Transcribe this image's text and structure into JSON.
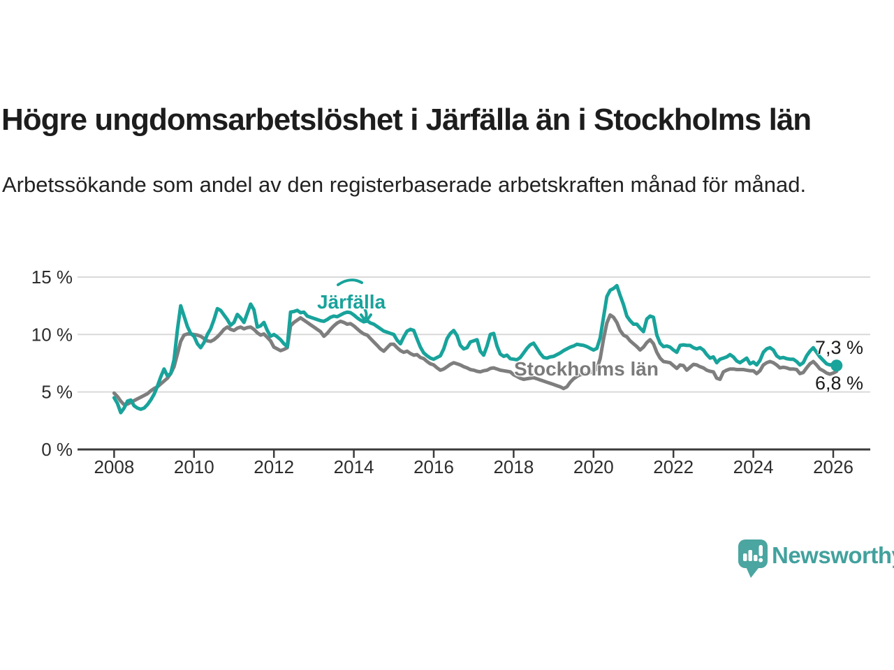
{
  "header": {
    "title": "Högre ungdomsarbetslöshet i Järfälla än i Stockholms län",
    "subtitle": "Arbetssökande som andel av den registerbaserade arbetskraften månad för månad."
  },
  "chart_data": {
    "type": "line",
    "title": "Högre ungdomsarbetslöshet i Järfälla än i Stockholms län",
    "x_start_year": 2008,
    "points_per_year": 12,
    "ylim": [
      0,
      15.5
    ],
    "grid": "horizontal",
    "legend_position": "inline-annotations",
    "y_ticks": [
      {
        "value": 0,
        "label": "0 %"
      },
      {
        "value": 5,
        "label": "5 %"
      },
      {
        "value": 10,
        "label": "10 %"
      },
      {
        "value": 15,
        "label": "15 %"
      }
    ],
    "x_ticks": [
      {
        "year": 2008,
        "label": "2008"
      },
      {
        "year": 2010,
        "label": "2010"
      },
      {
        "year": 2012,
        "label": "2012"
      },
      {
        "year": 2014,
        "label": "2014"
      },
      {
        "year": 2016,
        "label": "2016"
      },
      {
        "year": 2018,
        "label": "2018"
      },
      {
        "year": 2020,
        "label": "2020"
      },
      {
        "year": 2022,
        "label": "2022"
      },
      {
        "year": 2024,
        "label": "2024"
      },
      {
        "year": 2026,
        "label": "2026"
      }
    ],
    "series": [
      {
        "name": "Järfälla",
        "color": "#18a39b",
        "end_label": "7,3 %",
        "end_value": 7.3,
        "values": [
          4.5,
          4.0,
          3.2,
          3.6,
          4.2,
          4.3,
          3.8,
          3.6,
          3.5,
          3.6,
          3.9,
          4.3,
          4.8,
          5.5,
          6.3,
          7.0,
          6.4,
          6.6,
          7.8,
          10.4,
          12.5,
          11.6,
          10.7,
          10.1,
          9.85,
          9.2,
          8.85,
          9.3,
          10.0,
          10.5,
          11.3,
          12.25,
          12.1,
          11.7,
          11.3,
          10.8,
          11.05,
          11.75,
          11.45,
          11.05,
          11.85,
          12.65,
          12.15,
          10.65,
          10.75,
          11.05,
          10.35,
          9.85,
          10.0,
          9.8,
          9.55,
          9.2,
          8.95,
          11.95,
          12.0,
          12.1,
          11.9,
          11.95,
          11.6,
          11.5,
          11.4,
          11.3,
          11.2,
          11.15,
          11.3,
          11.5,
          11.6,
          11.55,
          11.7,
          11.85,
          11.95,
          11.9,
          11.7,
          11.45,
          11.25,
          11.1,
          11.2,
          11.0,
          10.9,
          10.7,
          10.5,
          10.3,
          10.2,
          10.1,
          10.0,
          9.5,
          9.2,
          9.8,
          10.3,
          10.45,
          10.35,
          9.6,
          8.9,
          8.4,
          8.15,
          7.95,
          7.85,
          8.0,
          8.15,
          8.75,
          9.65,
          10.1,
          10.35,
          9.9,
          9.05,
          8.75,
          8.85,
          9.35,
          9.45,
          9.55,
          8.55,
          8.2,
          9.0,
          10.0,
          10.1,
          9.0,
          8.3,
          8.1,
          8.2,
          7.9,
          7.85,
          7.8,
          8.0,
          8.4,
          8.8,
          9.1,
          9.25,
          8.8,
          8.35,
          8.0,
          7.95,
          8.05,
          8.1,
          8.25,
          8.4,
          8.6,
          8.75,
          8.9,
          9.0,
          9.15,
          9.1,
          9.05,
          8.95,
          8.8,
          8.65,
          8.8,
          9.7,
          11.5,
          13.3,
          13.85,
          14.0,
          14.25,
          13.4,
          12.6,
          11.6,
          11.2,
          10.9,
          10.9,
          10.55,
          10.25,
          11.35,
          11.6,
          11.5,
          9.95,
          9.25,
          8.95,
          9.0,
          8.9,
          8.65,
          8.45,
          9.05,
          9.1,
          9.05,
          9.05,
          8.85,
          8.75,
          8.85,
          8.65,
          8.25,
          7.95,
          8.05,
          7.55,
          7.85,
          7.95,
          8.05,
          8.25,
          8.05,
          7.7,
          7.55,
          7.75,
          7.95,
          7.45,
          7.6,
          7.35,
          7.75,
          8.45,
          8.75,
          8.85,
          8.65,
          8.15,
          7.95,
          8.0,
          7.9,
          7.85,
          7.85,
          7.65,
          7.35,
          7.55,
          8.15,
          8.55,
          8.85,
          8.45,
          8.05,
          7.75,
          7.45,
          7.35,
          7.4,
          7.3
        ]
      },
      {
        "name": "Stockholms län",
        "color": "#7e7e7e",
        "end_label": "6,8 %",
        "end_value": 6.8,
        "values": [
          4.9,
          4.6,
          4.2,
          3.9,
          3.95,
          4.1,
          4.25,
          4.4,
          4.55,
          4.7,
          4.85,
          5.1,
          5.3,
          5.45,
          5.7,
          5.95,
          6.2,
          6.6,
          7.2,
          8.3,
          9.4,
          9.95,
          10.05,
          10.05,
          10.0,
          9.95,
          9.85,
          9.65,
          9.45,
          9.4,
          9.55,
          9.8,
          10.1,
          10.45,
          10.65,
          10.45,
          10.35,
          10.55,
          10.65,
          10.5,
          10.6,
          10.65,
          10.45,
          10.15,
          9.95,
          10.05,
          9.75,
          9.45,
          8.9,
          8.75,
          8.6,
          8.7,
          8.85,
          10.75,
          11.05,
          11.25,
          11.45,
          11.25,
          11.05,
          10.85,
          10.65,
          10.45,
          10.25,
          9.85,
          10.1,
          10.45,
          10.75,
          11.0,
          11.15,
          11.05,
          10.9,
          10.95,
          10.75,
          10.5,
          10.25,
          10.05,
          9.95,
          9.65,
          9.35,
          9.05,
          8.75,
          8.55,
          8.85,
          9.15,
          9.15,
          8.85,
          8.6,
          8.45,
          8.55,
          8.35,
          8.2,
          8.25,
          8.0,
          7.9,
          7.65,
          7.45,
          7.35,
          7.1,
          6.9,
          7.0,
          7.2,
          7.4,
          7.55,
          7.45,
          7.35,
          7.2,
          7.1,
          6.95,
          6.9,
          6.8,
          6.75,
          6.85,
          6.9,
          7.05,
          7.1,
          7.0,
          6.9,
          6.85,
          6.8,
          6.75,
          6.5,
          6.35,
          6.2,
          6.1,
          6.15,
          6.2,
          6.25,
          6.15,
          6.05,
          5.95,
          5.85,
          5.75,
          5.65,
          5.55,
          5.45,
          5.3,
          5.45,
          5.85,
          6.15,
          6.35,
          6.5,
          6.55,
          6.6,
          6.7,
          6.8,
          7.0,
          7.9,
          9.6,
          11.0,
          11.7,
          11.5,
          11.05,
          10.35,
          9.95,
          9.8,
          9.45,
          9.2,
          8.95,
          8.65,
          8.9,
          9.3,
          9.55,
          9.2,
          8.45,
          7.95,
          7.65,
          7.6,
          7.55,
          7.3,
          7.05,
          7.35,
          7.3,
          6.9,
          7.15,
          7.4,
          7.35,
          7.2,
          7.1,
          6.9,
          6.8,
          6.75,
          6.2,
          6.1,
          6.75,
          6.9,
          7.0,
          7.0,
          6.95,
          6.95,
          6.95,
          6.9,
          6.85,
          6.85,
          6.6,
          6.85,
          7.35,
          7.55,
          7.65,
          7.55,
          7.35,
          7.1,
          7.15,
          7.1,
          7.0,
          7.0,
          6.95,
          6.6,
          6.7,
          7.1,
          7.45,
          7.65,
          7.35,
          7.0,
          6.85,
          6.65,
          6.55,
          6.65,
          6.8
        ]
      }
    ]
  },
  "colors": {
    "jarfalla": "#18a39b",
    "stockholm": "#7e7e7e",
    "axis": "#3b3b3b",
    "gridline": "#d9d9d9",
    "tick_text": "#2d2d2d",
    "brand_teal": "#4ba5a0"
  },
  "branding": {
    "logo_text": "Newsworthy"
  }
}
